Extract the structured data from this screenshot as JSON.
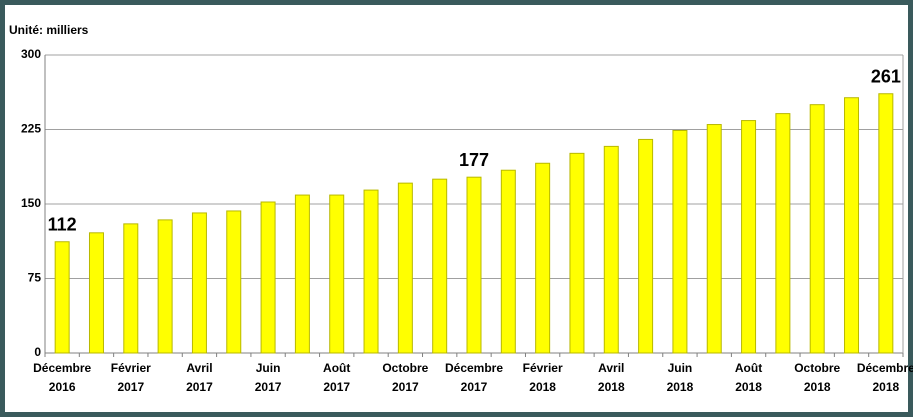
{
  "chart_data": {
    "type": "bar",
    "axis_label": "Unité: milliers",
    "categories": [
      "Décembre 2016",
      null,
      "Février 2017",
      null,
      "Avril 2017",
      null,
      "Juin 2017",
      null,
      "Août 2017",
      null,
      "Octobre 2017",
      null,
      "Décembre 2017",
      null,
      "Février 2018",
      null,
      "Avril 2018",
      null,
      "Juin 2018",
      null,
      "Août 2018",
      null,
      "Octobre 2018",
      null,
      "Décembre 2018"
    ],
    "values": [
      112,
      121,
      130,
      134,
      141,
      143,
      152,
      159,
      159,
      164,
      171,
      175,
      177,
      184,
      191,
      201,
      208,
      215,
      224,
      230,
      234,
      241,
      250,
      257,
      261
    ],
    "value_labels": [
      "112",
      null,
      null,
      null,
      null,
      null,
      null,
      null,
      null,
      null,
      null,
      null,
      "177",
      null,
      null,
      null,
      null,
      null,
      null,
      null,
      null,
      null,
      null,
      null,
      "261"
    ],
    "color": "#ffff00",
    "ylim": [
      0,
      300
    ],
    "yticks": [
      0,
      75,
      150,
      225,
      300
    ],
    "grid": true
  }
}
